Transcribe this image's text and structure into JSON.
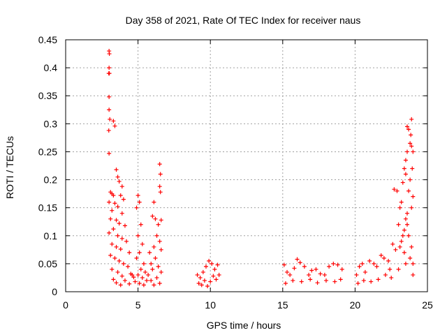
{
  "chart_data": {
    "type": "scatter",
    "title": "Day 358 of 2021, Rate Of TEC Index for receiver naus",
    "xlabel": "GPS time / hours",
    "ylabel": "ROTI / TECUs",
    "xlim": [
      0,
      25
    ],
    "ylim": [
      0,
      0.45
    ],
    "xticks": [
      0,
      5,
      10,
      15,
      20,
      25
    ],
    "yticks": [
      0,
      0.05,
      0.1,
      0.15,
      0.2,
      0.25,
      0.3,
      0.35,
      0.4,
      0.45
    ],
    "xtick_labels": [
      "0",
      "5",
      "10",
      "15",
      "20",
      "25"
    ],
    "ytick_labels": [
      "0",
      "0.05",
      "0.1",
      "0.15",
      "0.2",
      "0.25",
      "0.3",
      "0.35",
      "0.4",
      "0.45"
    ],
    "grid": true,
    "marker": "+",
    "marker_color": "#ff0000",
    "points": [
      [
        3.0,
        0.43
      ],
      [
        3.02,
        0.425
      ],
      [
        3.0,
        0.4
      ],
      [
        2.98,
        0.39
      ],
      [
        3.02,
        0.39
      ],
      [
        3.0,
        0.348
      ],
      [
        3.0,
        0.325
      ],
      [
        3.05,
        0.308
      ],
      [
        3.3,
        0.305
      ],
      [
        2.98,
        0.288
      ],
      [
        3.4,
        0.296
      ],
      [
        3.0,
        0.247
      ],
      [
        3.5,
        0.218
      ],
      [
        3.6,
        0.205
      ],
      [
        3.7,
        0.197
      ],
      [
        3.9,
        0.188
      ],
      [
        3.1,
        0.178
      ],
      [
        3.2,
        0.175
      ],
      [
        3.3,
        0.172
      ],
      [
        3.8,
        0.172
      ],
      [
        4.0,
        0.165
      ],
      [
        3.0,
        0.16
      ],
      [
        3.4,
        0.158
      ],
      [
        3.6,
        0.152
      ],
      [
        3.2,
        0.145
      ],
      [
        3.9,
        0.14
      ],
      [
        3.1,
        0.13
      ],
      [
        3.5,
        0.128
      ],
      [
        3.7,
        0.122
      ],
      [
        4.1,
        0.118
      ],
      [
        3.3,
        0.112
      ],
      [
        3.0,
        0.105
      ],
      [
        3.6,
        0.1
      ],
      [
        3.9,
        0.095
      ],
      [
        4.2,
        0.09
      ],
      [
        3.2,
        0.085
      ],
      [
        3.5,
        0.08
      ],
      [
        3.8,
        0.076
      ],
      [
        4.4,
        0.07
      ],
      [
        3.1,
        0.065
      ],
      [
        3.4,
        0.06
      ],
      [
        3.7,
        0.055
      ],
      [
        4.0,
        0.05
      ],
      [
        4.3,
        0.045
      ],
      [
        3.2,
        0.04
      ],
      [
        3.6,
        0.035
      ],
      [
        4.5,
        0.032
      ],
      [
        3.9,
        0.028
      ],
      [
        4.7,
        0.026
      ],
      [
        3.3,
        0.022
      ],
      [
        4.1,
        0.02
      ],
      [
        4.8,
        0.018
      ],
      [
        3.5,
        0.016
      ],
      [
        4.4,
        0.014
      ],
      [
        3.8,
        0.012
      ],
      [
        4.6,
        0.03
      ],
      [
        5.0,
        0.172
      ],
      [
        5.1,
        0.16
      ],
      [
        4.9,
        0.15
      ],
      [
        5.2,
        0.12
      ],
      [
        5.0,
        0.1
      ],
      [
        5.3,
        0.085
      ],
      [
        5.1,
        0.07
      ],
      [
        4.9,
        0.06
      ],
      [
        5.4,
        0.05
      ],
      [
        5.2,
        0.04
      ],
      [
        5.5,
        0.035
      ],
      [
        5.0,
        0.03
      ],
      [
        5.3,
        0.025
      ],
      [
        5.6,
        0.02
      ],
      [
        5.1,
        0.015
      ],
      [
        5.4,
        0.012
      ],
      [
        6.5,
        0.228
      ],
      [
        6.55,
        0.21
      ],
      [
        6.5,
        0.188
      ],
      [
        6.55,
        0.178
      ],
      [
        6.1,
        0.16
      ],
      [
        6.0,
        0.135
      ],
      [
        6.2,
        0.13
      ],
      [
        6.6,
        0.128
      ],
      [
        6.4,
        0.12
      ],
      [
        6.3,
        0.1
      ],
      [
        6.5,
        0.09
      ],
      [
        6.1,
        0.08
      ],
      [
        6.6,
        0.075
      ],
      [
        5.8,
        0.07
      ],
      [
        6.2,
        0.06
      ],
      [
        5.9,
        0.05
      ],
      [
        6.4,
        0.045
      ],
      [
        6.0,
        0.04
      ],
      [
        6.6,
        0.035
      ],
      [
        5.7,
        0.03
      ],
      [
        6.3,
        0.025
      ],
      [
        5.9,
        0.02
      ],
      [
        6.5,
        0.015
      ],
      [
        6.1,
        0.012
      ],
      [
        9.1,
        0.03
      ],
      [
        9.3,
        0.025
      ],
      [
        9.5,
        0.035
      ],
      [
        9.7,
        0.045
      ],
      [
        9.9,
        0.055
      ],
      [
        10.1,
        0.05
      ],
      [
        10.3,
        0.04
      ],
      [
        10.5,
        0.048
      ],
      [
        9.2,
        0.015
      ],
      [
        9.6,
        0.02
      ],
      [
        10.0,
        0.018
      ],
      [
        10.4,
        0.022
      ],
      [
        10.6,
        0.03
      ],
      [
        9.4,
        0.012
      ],
      [
        9.8,
        0.01
      ],
      [
        10.2,
        0.028
      ],
      [
        15.1,
        0.048
      ],
      [
        15.3,
        0.035
      ],
      [
        15.5,
        0.03
      ],
      [
        15.8,
        0.042
      ],
      [
        16.0,
        0.058
      ],
      [
        16.2,
        0.052
      ],
      [
        16.5,
        0.045
      ],
      [
        16.8,
        0.03
      ],
      [
        17.0,
        0.038
      ],
      [
        17.3,
        0.04
      ],
      [
        17.6,
        0.032
      ],
      [
        17.9,
        0.03
      ],
      [
        18.2,
        0.045
      ],
      [
        18.5,
        0.05
      ],
      [
        18.8,
        0.048
      ],
      [
        19.1,
        0.04
      ],
      [
        15.2,
        0.015
      ],
      [
        15.7,
        0.02
      ],
      [
        16.3,
        0.018
      ],
      [
        16.9,
        0.022
      ],
      [
        17.4,
        0.016
      ],
      [
        18.0,
        0.02
      ],
      [
        18.6,
        0.018
      ],
      [
        19.0,
        0.022
      ],
      [
        20.1,
        0.03
      ],
      [
        20.3,
        0.045
      ],
      [
        20.5,
        0.05
      ],
      [
        20.7,
        0.035
      ],
      [
        21.0,
        0.055
      ],
      [
        21.3,
        0.05
      ],
      [
        21.5,
        0.045
      ],
      [
        21.8,
        0.065
      ],
      [
        22.0,
        0.06
      ],
      [
        22.3,
        0.055
      ],
      [
        22.6,
        0.085
      ],
      [
        22.8,
        0.075
      ],
      [
        22.7,
        0.183
      ],
      [
        22.9,
        0.18
      ],
      [
        23.0,
        0.12
      ],
      [
        23.1,
        0.15
      ],
      [
        23.2,
        0.16
      ],
      [
        23.3,
        0.195
      ],
      [
        23.4,
        0.22
      ],
      [
        23.5,
        0.235
      ],
      [
        23.5,
        0.21
      ],
      [
        23.6,
        0.295
      ],
      [
        23.7,
        0.29
      ],
      [
        23.6,
        0.25
      ],
      [
        23.8,
        0.265
      ],
      [
        23.9,
        0.308
      ],
      [
        23.85,
        0.28
      ],
      [
        23.9,
        0.26
      ],
      [
        24.0,
        0.25
      ],
      [
        23.95,
        0.22
      ],
      [
        23.8,
        0.2
      ],
      [
        23.7,
        0.18
      ],
      [
        24.0,
        0.17
      ],
      [
        23.9,
        0.15
      ],
      [
        23.6,
        0.14
      ],
      [
        23.5,
        0.13
      ],
      [
        23.4,
        0.11
      ],
      [
        23.3,
        0.1
      ],
      [
        23.2,
        0.09
      ],
      [
        23.1,
        0.08
      ],
      [
        20.2,
        0.015
      ],
      [
        20.6,
        0.02
      ],
      [
        21.1,
        0.018
      ],
      [
        21.6,
        0.022
      ],
      [
        22.1,
        0.03
      ],
      [
        22.5,
        0.025
      ],
      [
        23.0,
        0.04
      ],
      [
        23.5,
        0.05
      ],
      [
        23.8,
        0.06
      ],
      [
        24.0,
        0.03
      ],
      [
        24.0,
        0.05
      ],
      [
        23.9,
        0.08
      ],
      [
        23.7,
        0.1
      ],
      [
        23.6,
        0.12
      ],
      [
        23.4,
        0.07
      ],
      [
        22.4,
        0.04
      ]
    ]
  }
}
